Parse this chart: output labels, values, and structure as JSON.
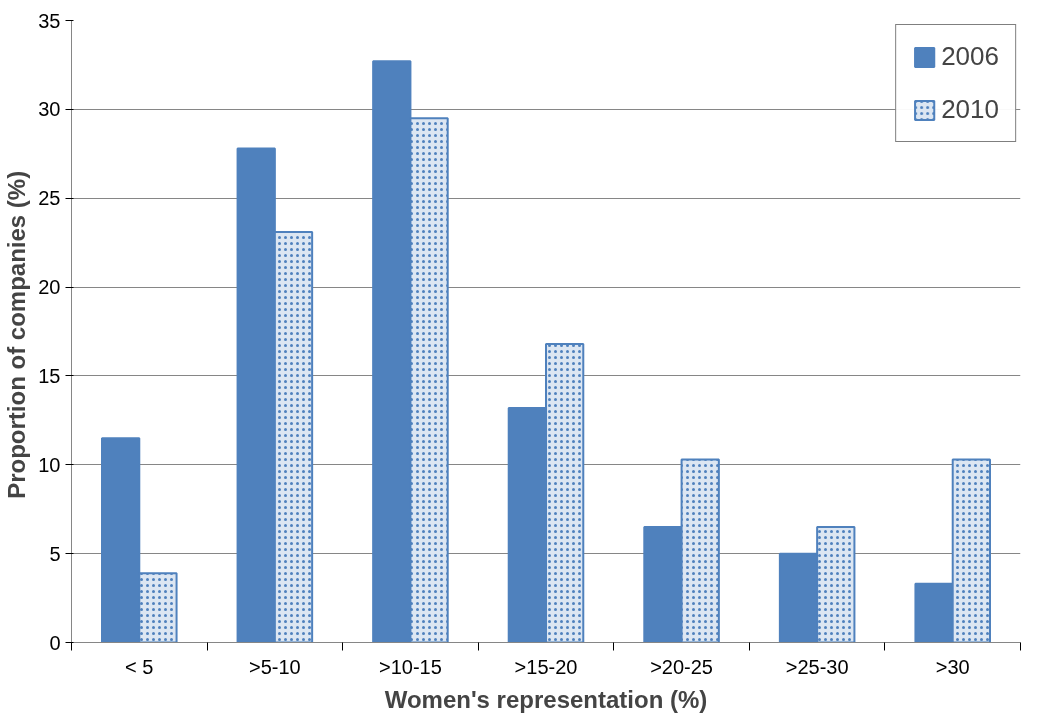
{
  "chart_data": {
    "type": "bar",
    "xlabel": "Women's representation (%)",
    "ylabel": "Proportion of companies  (%)",
    "categories": [
      "< 5",
      ">5-10",
      ">10-15",
      ">15-20",
      ">20-25",
      ">25-30",
      ">30"
    ],
    "series": [
      {
        "name": "2006",
        "color": "#4f81bd",
        "values": [
          11.5,
          27.8,
          32.7,
          13.2,
          6.5,
          5.0,
          3.3
        ]
      },
      {
        "name": "2010",
        "color": "#dce6f2",
        "values": [
          3.9,
          23.1,
          29.5,
          16.8,
          10.3,
          6.5,
          10.3
        ]
      }
    ],
    "ylim": [
      0,
      35
    ],
    "yticks": [
      0,
      5,
      10,
      15,
      20,
      25,
      30,
      35
    ],
    "grid": "y",
    "legend": "top right"
  }
}
